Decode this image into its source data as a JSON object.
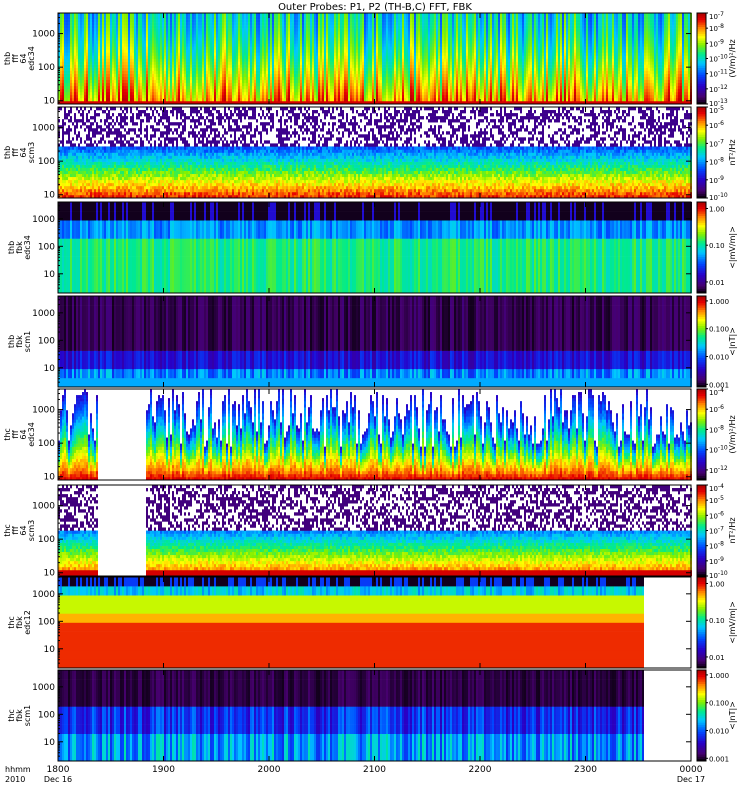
{
  "chart_data": {
    "type": "heatmap",
    "title": "Outer Probes: P1, P2 (TH-B,C) FFT, FBK",
    "x_axis": {
      "tick_labels": [
        "1800",
        "1900",
        "2000",
        "2100",
        "2200",
        "2300",
        "0000"
      ],
      "sub_labels": [
        "Dec 16",
        "",
        "",
        "",
        "",
        "",
        "Dec 17"
      ],
      "row_labels": [
        "hhmm",
        "2010"
      ]
    },
    "panels": [
      {
        "id": "p1",
        "label_lines": [
          "thb",
          "fff",
          "64",
          "edc34"
        ],
        "y_ticks": [
          "1000",
          "100",
          "10"
        ],
        "y_tick_values": [
          1000,
          100,
          10
        ],
        "ylim": [
          8,
          4096
        ],
        "zlim": [
          1e-13,
          1e-07
        ],
        "cbar_label": "(V/m)²/Hz",
        "cbar_ticks": [
          {
            "m": "10",
            "e": "-7"
          },
          {
            "m": "10",
            "e": "-8"
          },
          {
            "m": "10",
            "e": "-9"
          },
          {
            "m": "10",
            "e": "-10"
          },
          {
            "m": "10",
            "e": "-11"
          },
          {
            "m": "10",
            "e": "-12"
          },
          {
            "m": "10",
            "e": "-13"
          }
        ],
        "pattern": "fft_e",
        "gaps": []
      },
      {
        "id": "p2",
        "label_lines": [
          "thb",
          "fff",
          "64",
          "scm3"
        ],
        "y_ticks": [
          "1000",
          "100",
          "10"
        ],
        "y_tick_values": [
          1000,
          100,
          10
        ],
        "ylim": [
          8,
          4096
        ],
        "zlim": [
          1e-10,
          1e-05
        ],
        "cbar_label": "nT²/Hz",
        "cbar_ticks": [
          {
            "m": "10",
            "e": "-5"
          },
          {
            "m": "10",
            "e": "-6"
          },
          {
            "m": "10",
            "e": "-7"
          },
          {
            "m": "10",
            "e": "-8"
          },
          {
            "m": "10",
            "e": "-9"
          },
          {
            "m": "10",
            "e": "-10"
          }
        ],
        "pattern": "fft_b",
        "gaps": []
      },
      {
        "id": "p3",
        "label_lines": [
          "thb",
          "fbk",
          "edc34"
        ],
        "y_ticks": [
          "1000",
          "100",
          "10"
        ],
        "y_tick_values": [
          1000,
          100,
          10
        ],
        "ylim": [
          2,
          4096
        ],
        "zlim": [
          0.005,
          1.5
        ],
        "cbar_label": "<|mV/m|>",
        "cbar_ticks": [
          {
            "m": "1.00"
          },
          {
            "m": "0.10"
          },
          {
            "m": "0.01"
          }
        ],
        "cbar_tick_values": [
          1.0,
          0.1,
          0.01
        ],
        "pattern": "fbk_e_b",
        "gaps": []
      },
      {
        "id": "p4",
        "label_lines": [
          "thb",
          "fbk",
          "scm1"
        ],
        "y_ticks": [
          "1000",
          "100",
          "10"
        ],
        "y_tick_values": [
          1000,
          100,
          10
        ],
        "ylim": [
          2,
          4096
        ],
        "zlim": [
          0.0008,
          1.5
        ],
        "cbar_label": "<|nT|>",
        "cbar_ticks": [
          {
            "m": "1.000"
          },
          {
            "m": "0.100"
          },
          {
            "m": "0.010"
          },
          {
            "m": "0.001"
          }
        ],
        "cbar_tick_values": [
          1.0,
          0.1,
          0.01,
          0.001
        ],
        "pattern": "fbk_b_b",
        "gaps": []
      },
      {
        "id": "p5",
        "label_lines": [
          "thc",
          "fff",
          "64",
          "edc34"
        ],
        "y_ticks": [
          "1000",
          "100",
          "10"
        ],
        "y_tick_values": [
          1000,
          100,
          10
        ],
        "ylim": [
          8,
          4096
        ],
        "zlim": [
          1e-13,
          0.0001
        ],
        "cbar_label": "(V/m)²/Hz",
        "cbar_ticks": [
          {
            "m": "10",
            "e": "-4"
          },
          {
            "m": "10",
            "e": "-6"
          },
          {
            "m": "10",
            "e": "-8"
          },
          {
            "m": "10",
            "e": "-10"
          },
          {
            "m": "10",
            "e": "-12"
          }
        ],
        "pattern": "fft_e_c",
        "gaps": [
          [
            1822,
            1850
          ]
        ]
      },
      {
        "id": "p6",
        "label_lines": [
          "thc",
          "fff",
          "64",
          "scm3"
        ],
        "y_ticks": [
          "1000",
          "100",
          "10"
        ],
        "y_tick_values": [
          1000,
          100,
          10
        ],
        "ylim": [
          8,
          4096
        ],
        "zlim": [
          1e-10,
          0.0001
        ],
        "cbar_label": "nT²/Hz",
        "cbar_ticks": [
          {
            "m": "10",
            "e": "-4"
          },
          {
            "m": "10",
            "e": "-5"
          },
          {
            "m": "10",
            "e": "-6"
          },
          {
            "m": "10",
            "e": "-7"
          },
          {
            "m": "10",
            "e": "-8"
          },
          {
            "m": "10",
            "e": "-9"
          },
          {
            "m": "10",
            "e": "-10"
          }
        ],
        "pattern": "fft_b_c",
        "gaps": [
          [
            1822,
            1850
          ]
        ]
      },
      {
        "id": "p7",
        "label_lines": [
          "thc",
          "fbk",
          "edc12"
        ],
        "y_ticks": [
          "1000",
          "100",
          "10"
        ],
        "y_tick_values": [
          1000,
          100,
          10
        ],
        "ylim": [
          2,
          4096
        ],
        "zlim": [
          0.005,
          1.5
        ],
        "cbar_label": "<|mV/m|>",
        "cbar_ticks": [
          {
            "m": "1.00"
          },
          {
            "m": "0.10"
          },
          {
            "m": "0.01"
          }
        ],
        "cbar_tick_values": [
          1.0,
          0.1,
          0.01
        ],
        "pattern": "fbk_e_c",
        "gaps": [
          [
            2333,
            2400
          ]
        ]
      },
      {
        "id": "p8",
        "label_lines": [
          "thc",
          "fbk",
          "scm1"
        ],
        "y_ticks": [
          "1000",
          "100",
          "10"
        ],
        "y_tick_values": [
          1000,
          100,
          10
        ],
        "ylim": [
          2,
          4096
        ],
        "zlim": [
          0.0008,
          1.5
        ],
        "cbar_label": "<|nT|>",
        "cbar_ticks": [
          {
            "m": "1.000"
          },
          {
            "m": "0.100"
          },
          {
            "m": "0.010"
          },
          {
            "m": "0.001"
          }
        ],
        "cbar_tick_values": [
          1.0,
          0.1,
          0.01,
          0.001
        ],
        "pattern": "fbk_b_c",
        "gaps": [
          [
            2333,
            2400
          ]
        ]
      }
    ]
  }
}
